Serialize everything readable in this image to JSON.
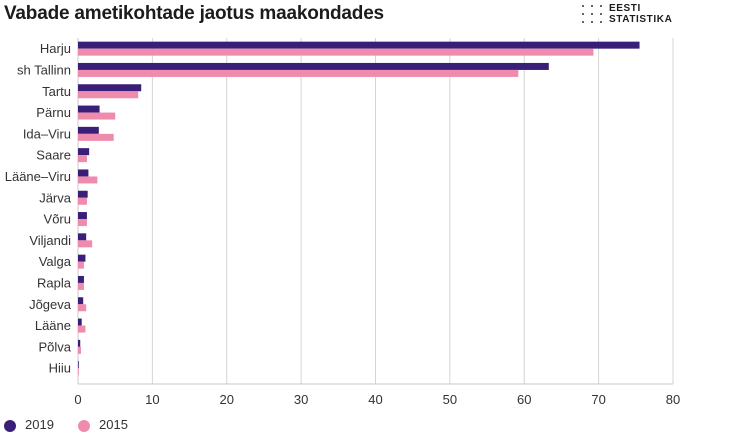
{
  "header": {
    "title": "Vabade ametikohtade jaotus maakondades",
    "logo_line1": "EESTI",
    "logo_line2": "STATISTIKA"
  },
  "chart_data": {
    "type": "bar",
    "orientation": "horizontal",
    "title": "Vabade ametikohtade jaotus maakondades",
    "xlabel": "",
    "ylabel": "",
    "xlim": [
      0,
      80
    ],
    "xticks": [
      0,
      10,
      20,
      30,
      40,
      50,
      60,
      70,
      80
    ],
    "grid": true,
    "legend_position": "bottom-left",
    "categories": [
      "Harju",
      "sh Tallinn",
      "Tartu",
      "Pärnu",
      "Ida–Viru",
      "Saare",
      "Lääne–Viru",
      "Järva",
      "Võru",
      "Viljandi",
      "Valga",
      "Rapla",
      "Jõgeva",
      "Lääne",
      "Põlva",
      "Hiiu"
    ],
    "series": [
      {
        "name": "2019",
        "color": "#3a1f78",
        "values": [
          75.5,
          63.3,
          8.5,
          2.9,
          2.8,
          1.5,
          1.4,
          1.3,
          1.2,
          1.1,
          1.0,
          0.8,
          0.7,
          0.5,
          0.3,
          0.1
        ]
      },
      {
        "name": "2015",
        "color": "#ef8cad",
        "values": [
          69.3,
          59.2,
          8.1,
          5.0,
          4.8,
          1.2,
          2.6,
          1.2,
          1.2,
          1.9,
          0.8,
          0.8,
          1.1,
          1.0,
          0.4,
          0.1
        ]
      }
    ]
  }
}
